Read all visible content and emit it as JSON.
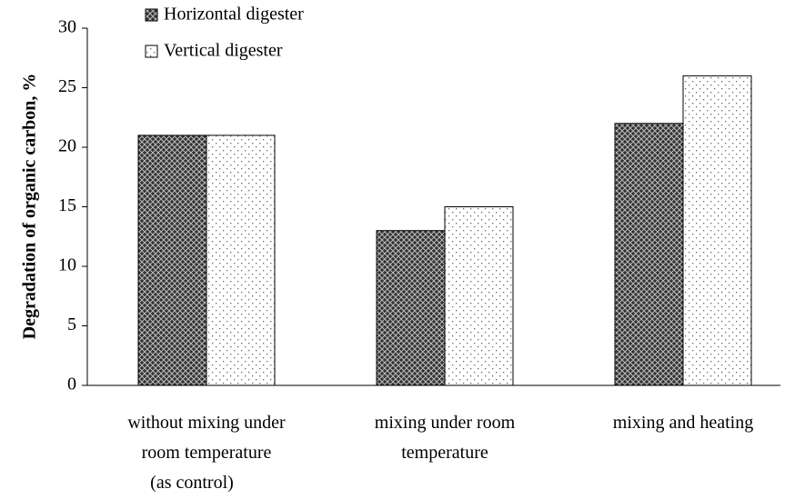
{
  "chart_data": {
    "type": "bar",
    "y_label": "Degradation of organic carbon, %",
    "categories": [
      [
        "without mixing under",
        "room temperature",
        "(as control)"
      ],
      [
        "mixing under room",
        "temperature"
      ],
      [
        "mixing and heating"
      ]
    ],
    "series": [
      {
        "name": "Horizontal digester",
        "color": "#404040",
        "values": [
          21,
          13,
          22
        ]
      },
      {
        "name": "Vertical digester",
        "color": "#ffffff",
        "values": [
          21,
          15,
          26
        ]
      }
    ],
    "ylim": [
      0,
      30
    ],
    "yticks": [
      0,
      5,
      10,
      15,
      20,
      25,
      30
    ],
    "grid": false,
    "legend": "top"
  }
}
